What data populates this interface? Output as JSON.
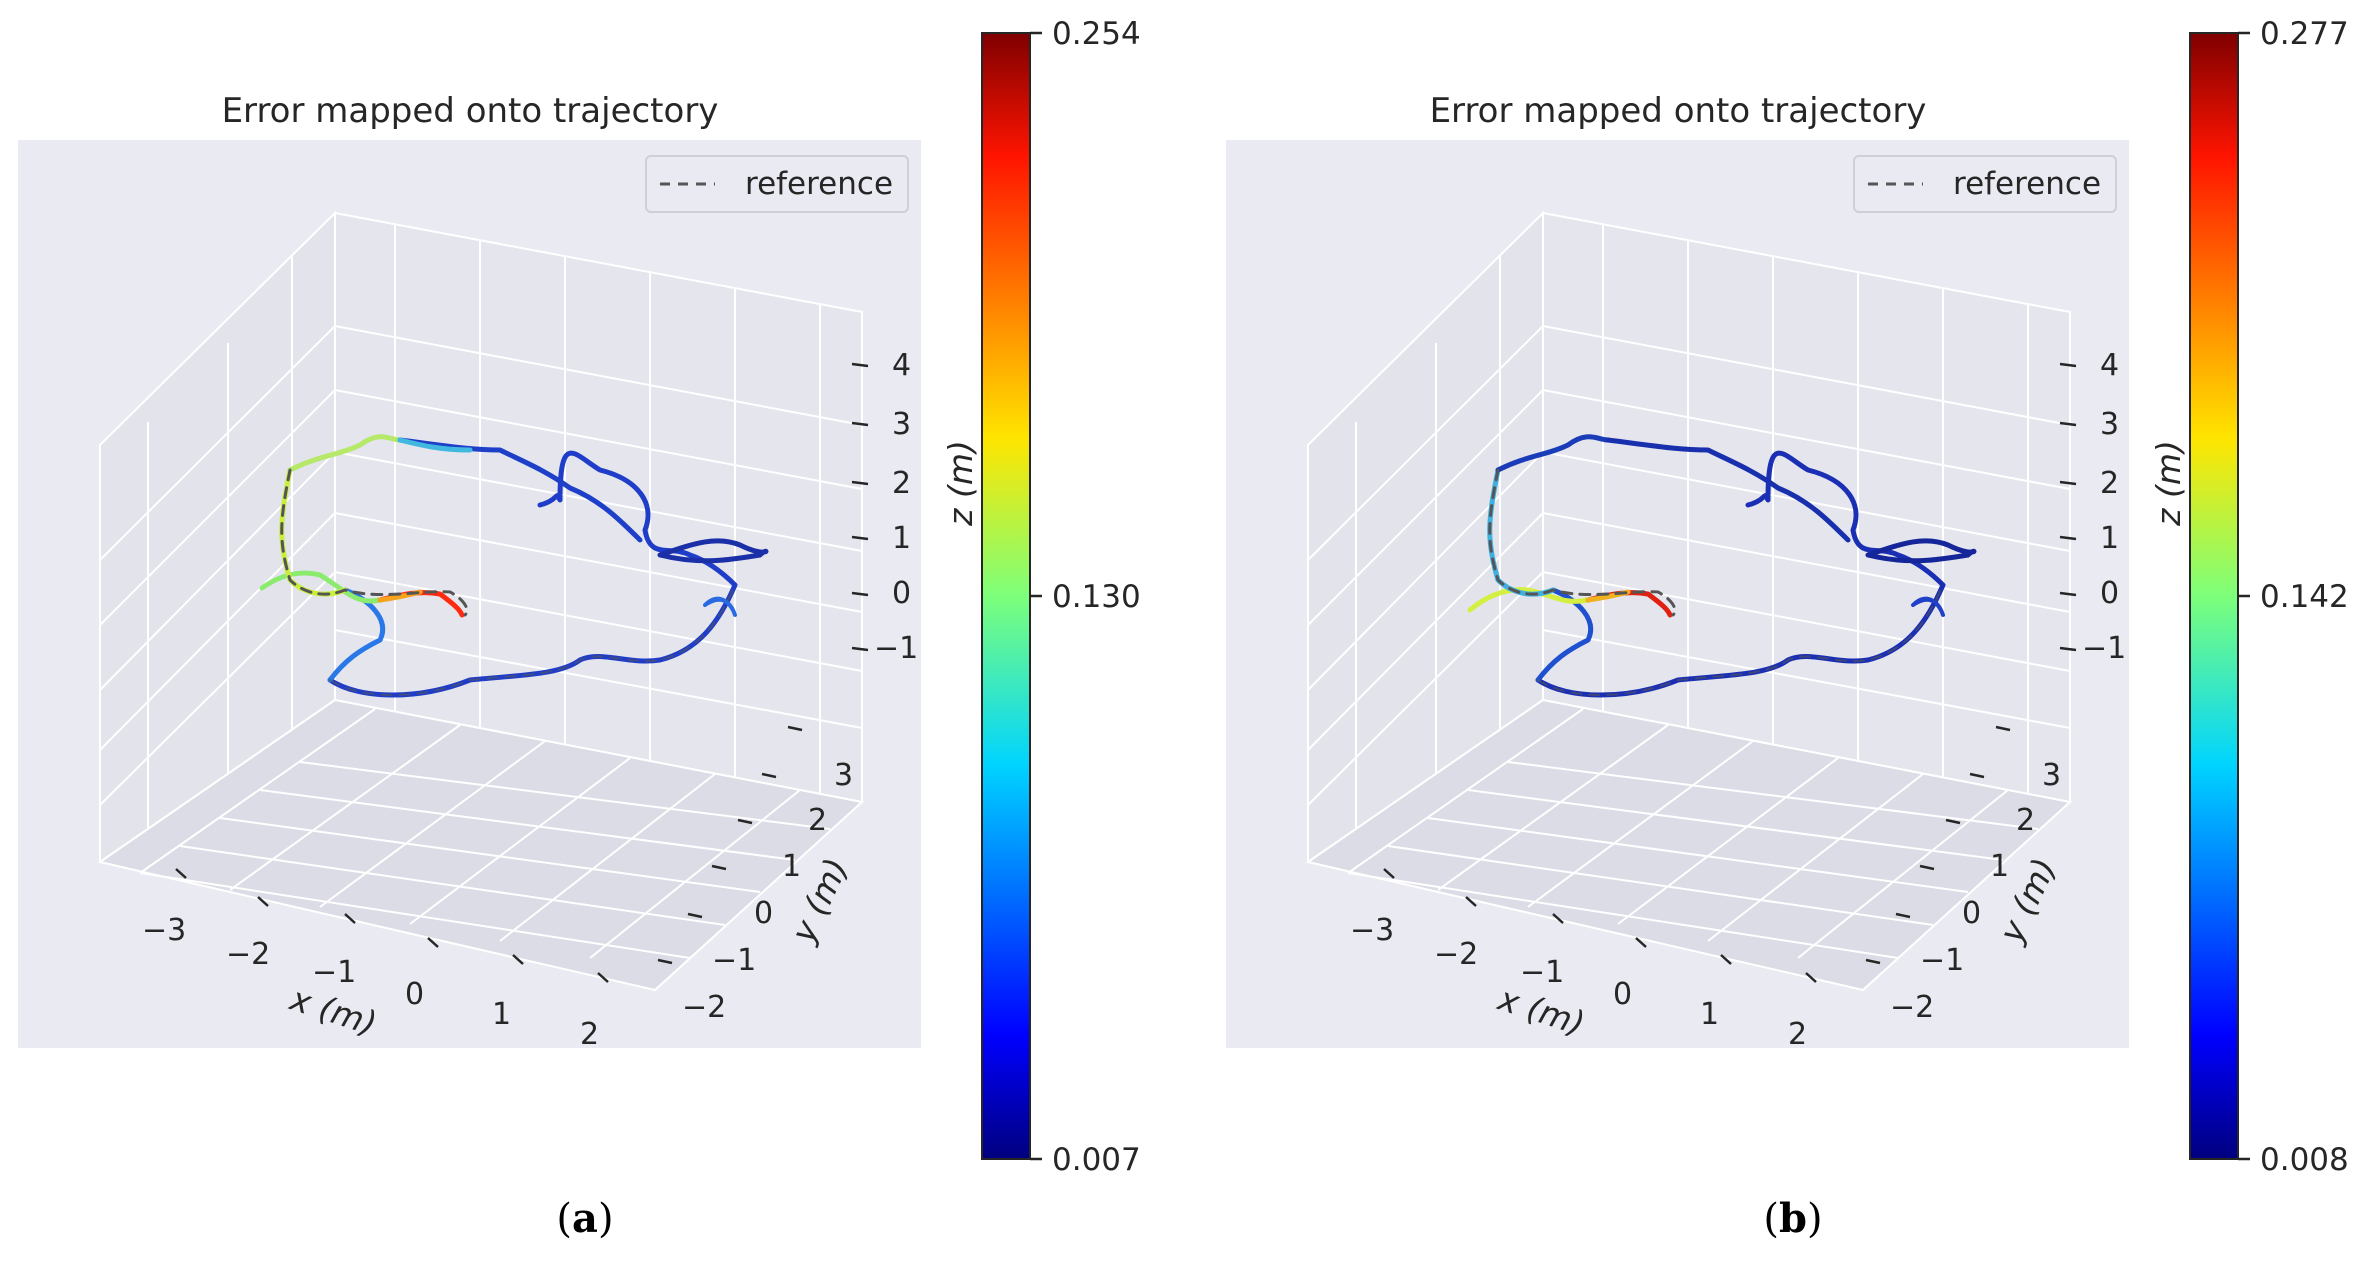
{
  "subplots": [
    {
      "open": "(",
      "label": "a",
      "close": ")"
    },
    {
      "open": "(",
      "label": "b",
      "close": ")"
    }
  ],
  "chart_data": [
    {
      "type": "line",
      "title": "Error mapped onto trajectory",
      "legend": {
        "entries": [
          "reference"
        ],
        "placement": "top-right"
      },
      "xlabel": "x (m)",
      "ylabel": "y (m)",
      "zlabel": "z (m)",
      "x_ticks": [
        "−3",
        "−2",
        "−1",
        "0",
        "1",
        "2"
      ],
      "y_ticks": [
        "−2",
        "−1",
        "0",
        "1",
        "2",
        "3"
      ],
      "z_ticks": [
        "−1",
        "0",
        "1",
        "2",
        "3",
        "4"
      ],
      "colorbar": {
        "colormap": "jet",
        "min": 0.007,
        "max": 0.254,
        "ticks": [
          "0.007",
          "0.130",
          "0.254"
        ]
      },
      "series": [
        {
          "name": "reference",
          "style": "dashed",
          "color": "#555555"
        }
      ]
    },
    {
      "type": "line",
      "title": "Error mapped onto trajectory",
      "legend": {
        "entries": [
          "reference"
        ],
        "placement": "top-right"
      },
      "xlabel": "x (m)",
      "ylabel": "y (m)",
      "zlabel": "z (m)",
      "x_ticks": [
        "−3",
        "−2",
        "−1",
        "0",
        "1",
        "2"
      ],
      "y_ticks": [
        "−2",
        "−1",
        "0",
        "1",
        "2",
        "3"
      ],
      "z_ticks": [
        "−1",
        "0",
        "1",
        "2",
        "3",
        "4"
      ],
      "colorbar": {
        "colormap": "jet",
        "min": 0.008,
        "max": 0.277,
        "ticks": [
          "0.008",
          "0.142",
          "0.277"
        ]
      },
      "series": [
        {
          "name": "reference",
          "style": "dashed",
          "color": "#555555"
        }
      ]
    }
  ]
}
